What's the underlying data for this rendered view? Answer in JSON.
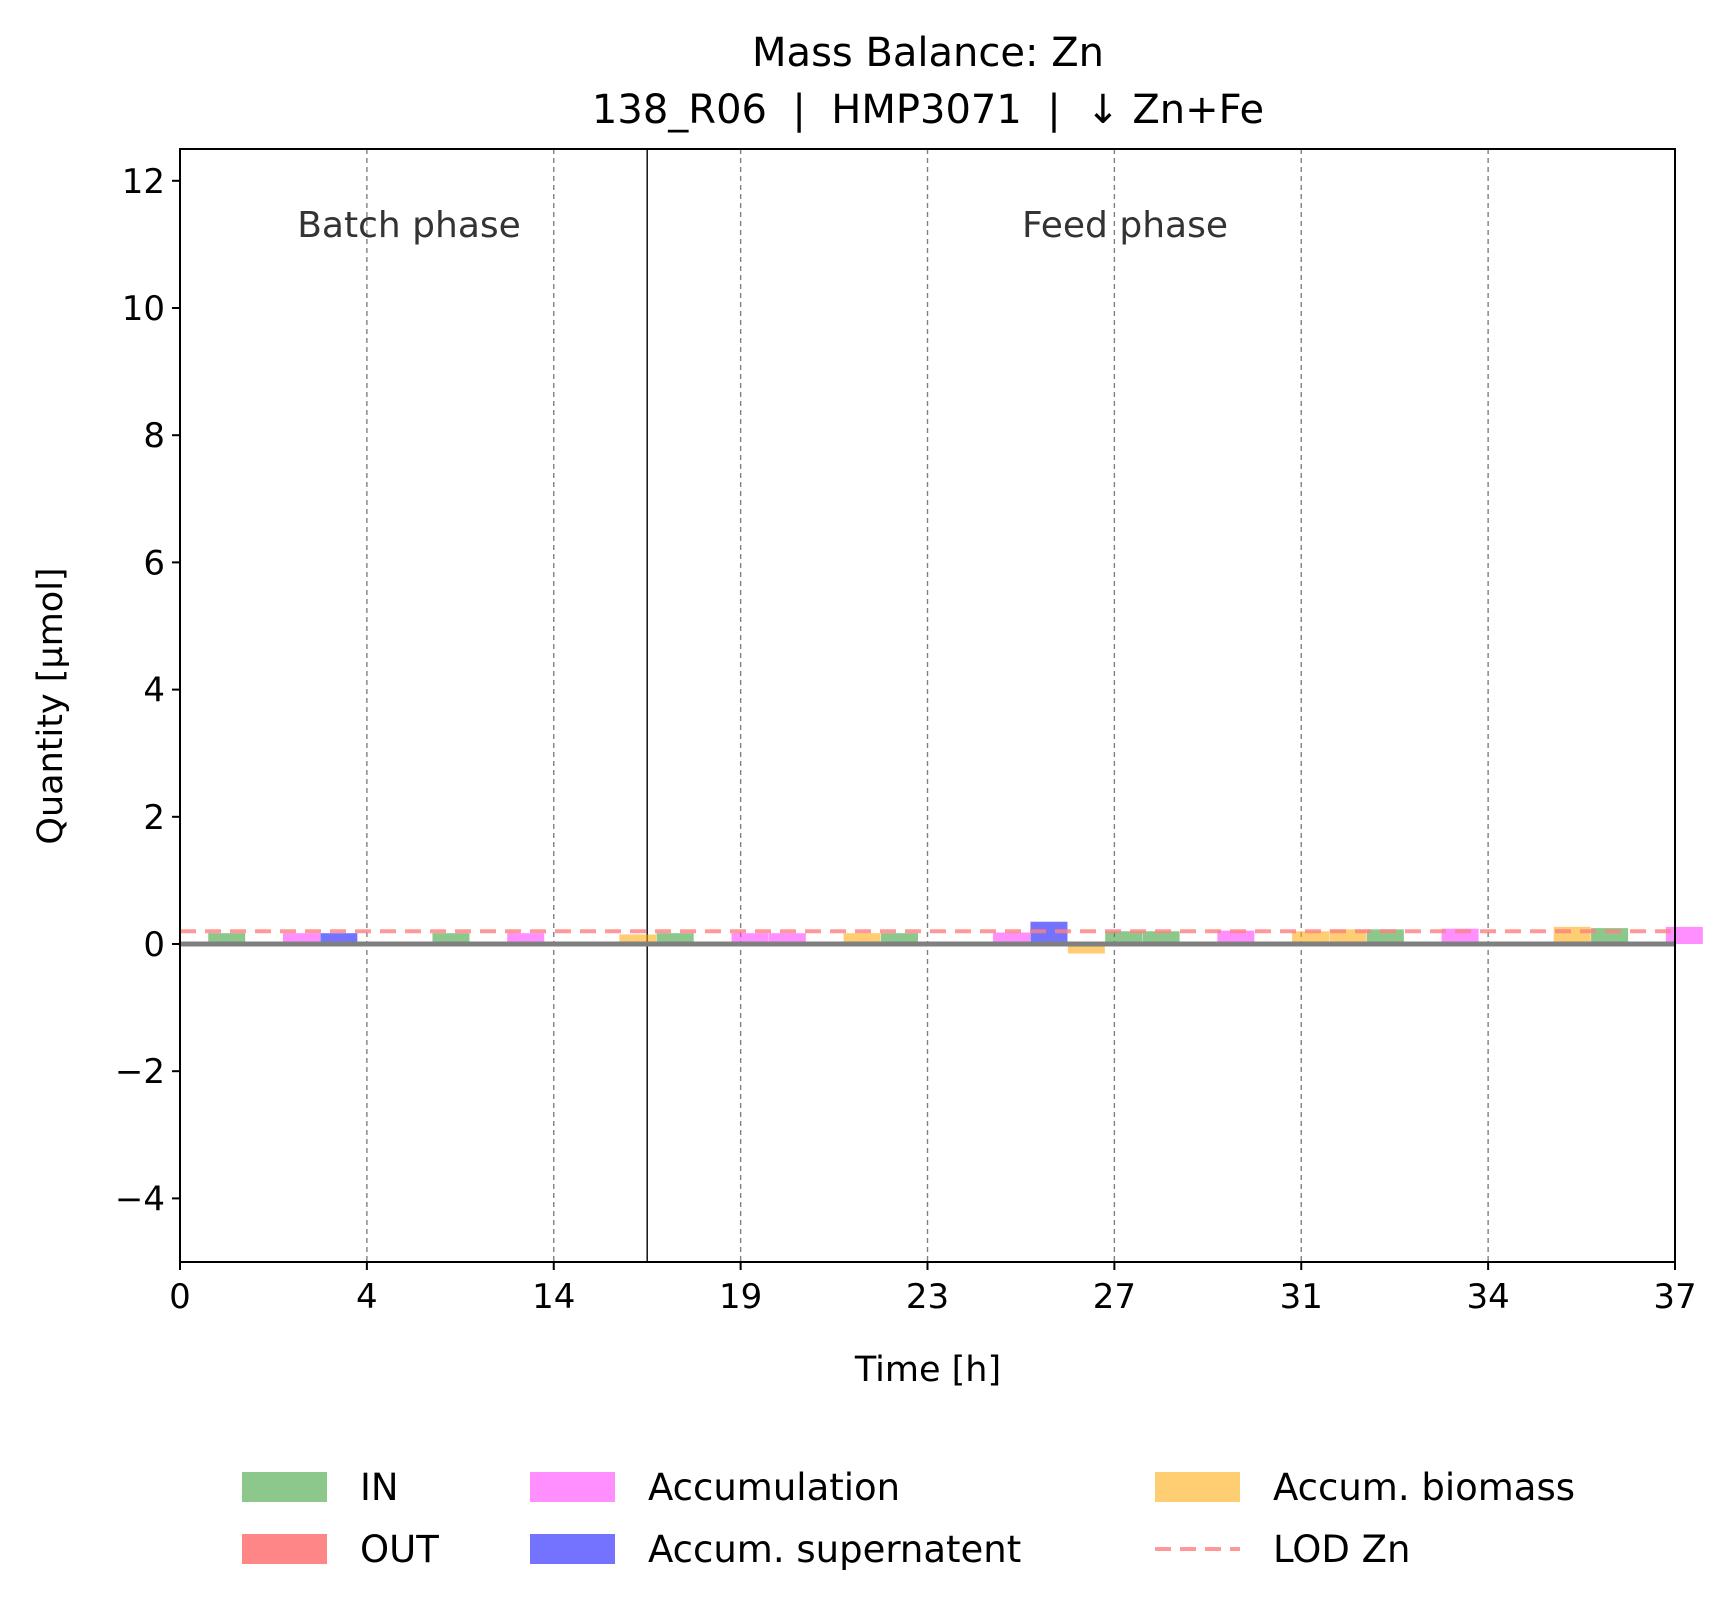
{
  "chart_data": {
    "type": "bar",
    "title": "Mass Balance: Zn",
    "subtitle": "138_R06  |  HMP3071  |  ↓ Zn+Fe",
    "xlabel": "Time [h]",
    "ylabel": "Quantity [µmol]",
    "ylim": [
      -5,
      12.5
    ],
    "y_ticks": [
      -4,
      -2,
      0,
      2,
      4,
      6,
      8,
      10,
      12
    ],
    "y_tick_labels": [
      "−4",
      "−2",
      "0",
      "2",
      "4",
      "6",
      "8",
      "10",
      "12"
    ],
    "x_tick_labels": [
      "0",
      "4",
      "14",
      "19",
      "23",
      "27",
      "31",
      "34",
      "37"
    ],
    "interval_boundaries": [
      4,
      14,
      19,
      23,
      27,
      31,
      34
    ],
    "phase_boundary_after_interval": 3,
    "phases": [
      {
        "label": "Batch phase"
      },
      {
        "label": "Feed phase"
      }
    ],
    "lod": {
      "name": "LOD Zn",
      "value": 0.2
    },
    "grid": false,
    "legend_position": "bottom-center",
    "series": [
      {
        "name": "IN",
        "color": "#2e9a2e",
        "values": [
          0.17,
          0.17,
          0.17,
          0.17,
          0.2,
          0.2,
          0.23,
          0.25
        ]
      },
      {
        "name": "OUT",
        "color": "#ff2222",
        "values": [
          0,
          0,
          0,
          0,
          0,
          0,
          0,
          0
        ]
      },
      {
        "name": "Accumulation",
        "color": "#ff33ff",
        "values": [
          0.17,
          0.17,
          0.17,
          0.17,
          0.18,
          0.21,
          0.24,
          0.27
        ]
      },
      {
        "name": "Accum. supernatent",
        "color": "#0000ff",
        "values": [
          0.17,
          0,
          0,
          0,
          0.35,
          0,
          0,
          0
        ]
      },
      {
        "name": "Accum. biomass",
        "color": "#ffa500",
        "values": [
          0,
          0,
          0.15,
          0.17,
          -0.15,
          0.2,
          0.23,
          0.27
        ]
      }
    ]
  }
}
